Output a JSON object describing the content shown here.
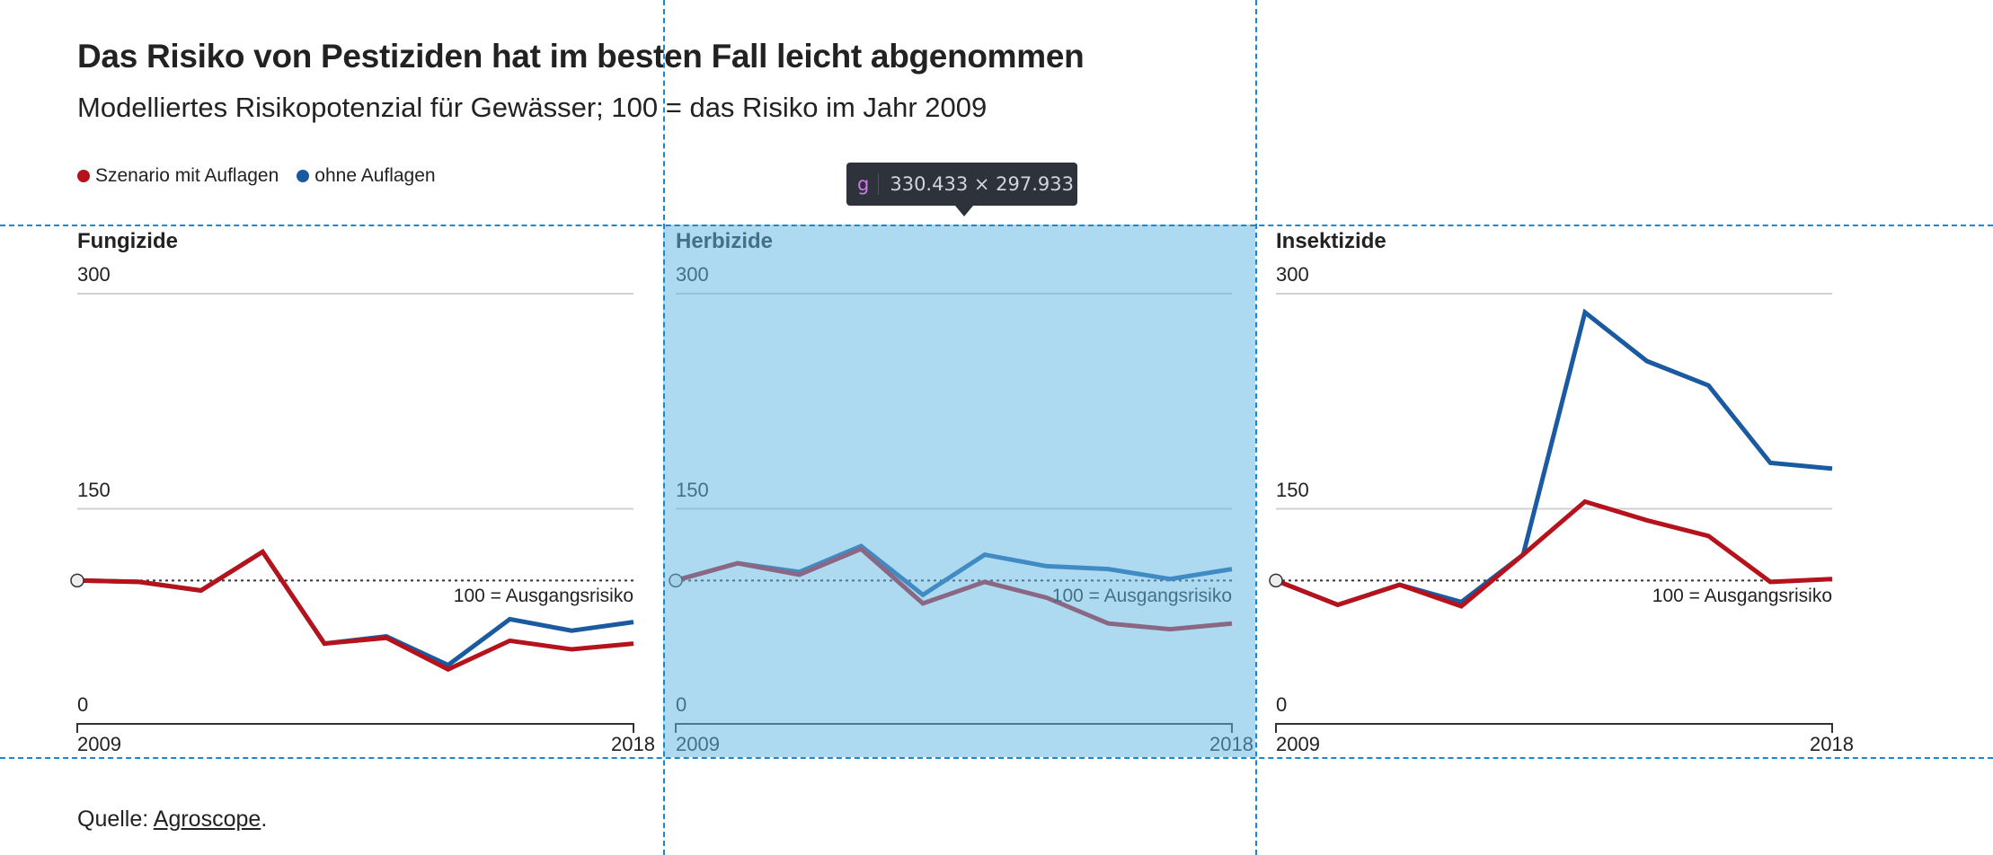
{
  "header": {
    "title": "Das Risiko von Pestiziden hat im besten Fall leicht abgenommen",
    "subtitle": "Modelliertes Risikopotenzial für Gewässer; 100 = das Risiko im Jahr 2009"
  },
  "legend": [
    {
      "label": "Szenario mit Auflagen",
      "color": "#b5121b"
    },
    {
      "label": "ohne Auflagen",
      "color": "#1a5aa0"
    }
  ],
  "tooltip": {
    "tag": "g",
    "text": "330.433 × 297.933"
  },
  "source": {
    "prefix": "Quelle: ",
    "link": "Agroscope",
    "suffix": "."
  },
  "chart_data": [
    {
      "type": "line",
      "title": "Fungizide",
      "x": [
        2009,
        2010,
        2011,
        2012,
        2013,
        2014,
        2015,
        2016,
        2017,
        2018
      ],
      "xticks": [
        "2009",
        "2018"
      ],
      "yticks": [
        "300",
        "150",
        "0"
      ],
      "ylim": [
        0,
        300
      ],
      "baseline": {
        "value": 100,
        "label": "100 = Ausgangsrisiko"
      },
      "series": [
        {
          "name": "ohne Auflagen",
          "values": [
            100,
            99,
            93,
            120,
            56,
            61,
            41,
            73,
            65,
            71
          ]
        },
        {
          "name": "Szenario mit Auflagen",
          "values": [
            100,
            99,
            93,
            120,
            56,
            60,
            38,
            58,
            52,
            56
          ]
        }
      ]
    },
    {
      "type": "line",
      "title": "Herbizide",
      "x": [
        2009,
        2010,
        2011,
        2012,
        2013,
        2014,
        2015,
        2016,
        2017,
        2018
      ],
      "xticks": [
        "2009",
        "2018"
      ],
      "yticks": [
        "300",
        "150",
        "0"
      ],
      "ylim": [
        0,
        300
      ],
      "baseline": {
        "value": 100,
        "label": "100 = Ausgangsrisiko"
      },
      "series": [
        {
          "name": "ohne Auflagen",
          "values": [
            100,
            112,
            106,
            124,
            90,
            118,
            110,
            108,
            101,
            108
          ]
        },
        {
          "name": "Szenario mit Auflagen",
          "values": [
            100,
            112,
            104,
            122,
            84,
            99,
            88,
            70,
            66,
            70
          ]
        }
      ]
    },
    {
      "type": "line",
      "title": "Insektizide",
      "x": [
        2009,
        2010,
        2011,
        2012,
        2013,
        2014,
        2015,
        2016,
        2017,
        2018
      ],
      "xticks": [
        "2009",
        "2018"
      ],
      "yticks": [
        "300",
        "150",
        "0"
      ],
      "ylim": [
        0,
        300
      ],
      "baseline": {
        "value": 100,
        "label": "100 = Ausgangsrisiko"
      },
      "series": [
        {
          "name": "ohne Auflagen",
          "values": [
            100,
            83,
            97,
            85,
            118,
            287,
            253,
            236,
            182,
            178
          ]
        },
        {
          "name": "Szenario mit Auflagen",
          "values": [
            100,
            83,
            97,
            82,
            118,
            155,
            142,
            131,
            99,
            101
          ]
        }
      ]
    }
  ]
}
